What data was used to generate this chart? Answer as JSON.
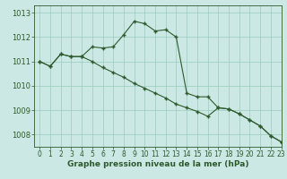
{
  "x": [
    0,
    1,
    2,
    3,
    4,
    5,
    6,
    7,
    8,
    9,
    10,
    11,
    12,
    13,
    14,
    15,
    16,
    17,
    18,
    19,
    20,
    21,
    22,
    23
  ],
  "line1": [
    1011.0,
    1010.8,
    1011.3,
    1011.2,
    1011.2,
    1011.6,
    1011.55,
    1011.6,
    1012.1,
    1012.65,
    1012.55,
    1012.25,
    1012.3,
    1012.0,
    1009.7,
    1009.55,
    1009.55,
    1009.1,
    1009.05,
    1008.85,
    1008.6,
    1008.35,
    1007.95,
    1007.7
  ],
  "line2": [
    1011.0,
    1010.8,
    1011.3,
    1011.2,
    1011.2,
    1011.0,
    1010.75,
    1010.55,
    1010.35,
    1010.1,
    1009.9,
    1009.7,
    1009.5,
    1009.25,
    1009.1,
    1008.95,
    1008.75,
    1009.1,
    1009.05,
    1008.85,
    1008.6,
    1008.35,
    1007.95,
    1007.7
  ],
  "bg_color": "#cce8e4",
  "grid_color": "#99ccbb",
  "line_color": "#2d5a2d",
  "xlim": [
    -0.5,
    23
  ],
  "ylim": [
    1007.5,
    1013.3
  ],
  "yticks": [
    1008,
    1009,
    1010,
    1011,
    1012,
    1013
  ],
  "xticks": [
    0,
    1,
    2,
    3,
    4,
    5,
    6,
    7,
    8,
    9,
    10,
    11,
    12,
    13,
    14,
    15,
    16,
    17,
    18,
    19,
    20,
    21,
    22,
    23
  ],
  "xlabel": "Graphe pression niveau de la mer (hPa)",
  "xlabel_fontsize": 6.5,
  "tick_fontsize": 5.5,
  "ytick_fontsize": 6.0
}
